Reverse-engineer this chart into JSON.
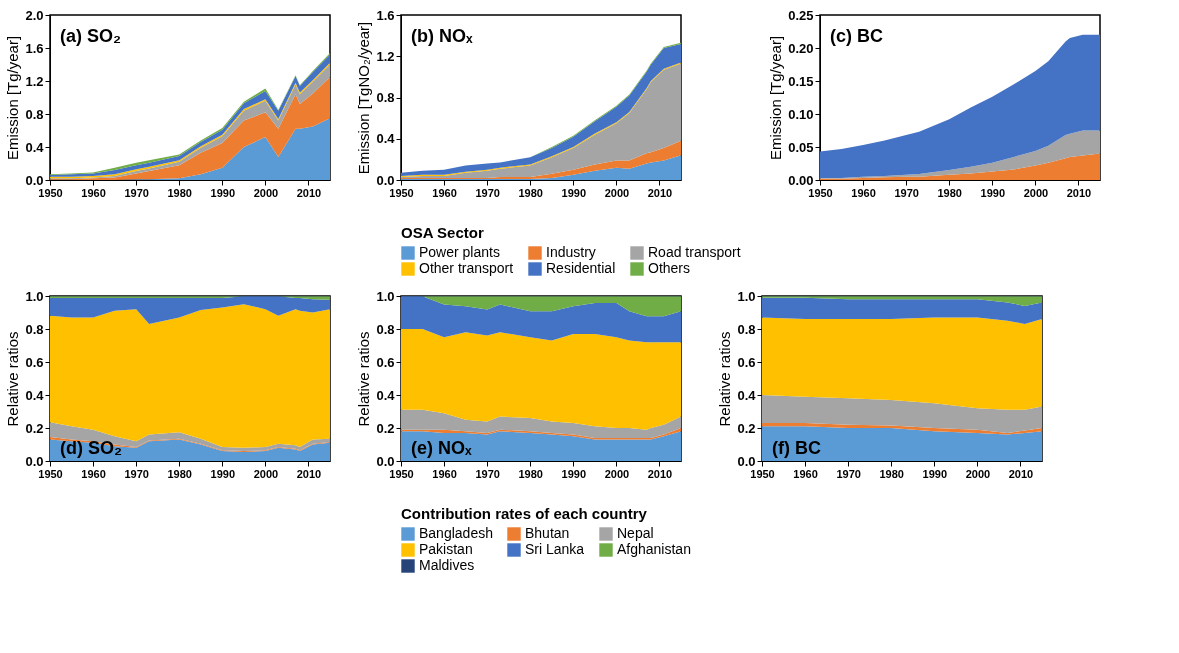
{
  "chart_data": [
    {
      "type": "area",
      "stacked": true,
      "annotations": [
        "(a) SO₂"
      ],
      "ylabel": "Emission [Tg/year]",
      "x": [
        1950,
        1955,
        1960,
        1965,
        1970,
        1973,
        1980,
        1985,
        1990,
        1995,
        2000,
        2003,
        2007,
        2008,
        2011,
        2015
      ],
      "xlim": [
        1950,
        2015
      ],
      "xticks": [
        1950,
        1960,
        1970,
        1980,
        1990,
        2000,
        2010
      ],
      "ylim": [
        0,
        2
      ],
      "yticks": [
        {
          "value": 0,
          "label": "0.0"
        },
        0.4,
        0.8,
        1.2,
        1.6,
        {
          "value": 2,
          "label": "2.0"
        }
      ],
      "grid": false,
      "series": [
        {
          "color": "#5b9bd5",
          "values": [
            0,
            0,
            0,
            0,
            0.01,
            0.01,
            0.02,
            0.07,
            0.15,
            0.4,
            0.52,
            0.28,
            0.62,
            0.62,
            0.65,
            0.75
          ]
        },
        {
          "color": "#ed7d31",
          "values": [
            0.01,
            0.01,
            0.02,
            0.03,
            0.07,
            0.1,
            0.16,
            0.26,
            0.3,
            0.32,
            0.3,
            0.34,
            0.42,
            0.3,
            0.4,
            0.5
          ]
        },
        {
          "color": "#a5a5a5",
          "values": [
            0.01,
            0.01,
            0.01,
            0.02,
            0.03,
            0.03,
            0.04,
            0.06,
            0.08,
            0.12,
            0.14,
            0.1,
            0.12,
            0.12,
            0.14,
            0.15
          ]
        },
        {
          "color": "#ffc000",
          "values": [
            0.02,
            0.02,
            0.02,
            0.02,
            0.02,
            0.02,
            0.02,
            0.02,
            0.02,
            0.02,
            0.02,
            0.02,
            0.02,
            0.02,
            0.02,
            0.02
          ]
        },
        {
          "color": "#4472c4",
          "values": [
            0.02,
            0.03,
            0.03,
            0.05,
            0.05,
            0.05,
            0.05,
            0.05,
            0.06,
            0.07,
            0.1,
            0.1,
            0.08,
            0.08,
            0.1,
            0.1
          ]
        },
        {
          "color": "#70ad47",
          "values": [
            0.01,
            0.01,
            0.01,
            0.03,
            0.03,
            0.03,
            0.02,
            0.02,
            0.02,
            0.02,
            0.03,
            0.01,
            0.01,
            0.01,
            0.01,
            0.02
          ]
        }
      ]
    },
    {
      "type": "area",
      "stacked": true,
      "annotations": [
        "(b) NOₓ"
      ],
      "ylabel": "Emission [TgNO₂/year]",
      "legend": "bottom",
      "legend_title": "OSA Sector",
      "x": [
        1950,
        1955,
        1960,
        1965,
        1970,
        1973,
        1980,
        1985,
        1990,
        1995,
        2000,
        2003,
        2007,
        2008,
        2011,
        2015
      ],
      "xlim": [
        1950,
        2015
      ],
      "xticks": [
        1950,
        1960,
        1970,
        1980,
        1990,
        2000,
        2010
      ],
      "ylim": [
        0,
        1.6
      ],
      "yticks": [
        {
          "value": 0,
          "label": "0.0"
        },
        0.4,
        0.8,
        1.2,
        1.6
      ],
      "grid": false,
      "series": [
        {
          "name": "Power plants",
          "color": "#5b9bd5",
          "values": [
            0.01,
            0.01,
            0.01,
            0.01,
            0.01,
            0.01,
            0.01,
            0.02,
            0.05,
            0.09,
            0.12,
            0.11,
            0.16,
            0.17,
            0.19,
            0.24
          ]
        },
        {
          "name": "Industry",
          "color": "#ed7d31",
          "values": [
            0.01,
            0.01,
            0.01,
            0.01,
            0.01,
            0.02,
            0.02,
            0.04,
            0.05,
            0.06,
            0.07,
            0.08,
            0.1,
            0.1,
            0.12,
            0.14
          ]
        },
        {
          "name": "Road transport",
          "color": "#a5a5a5",
          "values": [
            0.01,
            0.02,
            0.02,
            0.05,
            0.07,
            0.08,
            0.11,
            0.16,
            0.21,
            0.29,
            0.36,
            0.46,
            0.62,
            0.68,
            0.76,
            0.75
          ]
        },
        {
          "name": "Other transport",
          "color": "#ffc000",
          "values": [
            0.01,
            0.01,
            0.01,
            0.01,
            0.01,
            0.01,
            0.01,
            0.01,
            0.01,
            0.01,
            0.01,
            0.01,
            0.01,
            0.01,
            0.01,
            0.01
          ]
        },
        {
          "name": "Residential",
          "color": "#4472c4",
          "values": [
            0.03,
            0.04,
            0.05,
            0.06,
            0.06,
            0.05,
            0.07,
            0.08,
            0.1,
            0.12,
            0.15,
            0.16,
            0.16,
            0.16,
            0.2,
            0.18
          ]
        },
        {
          "name": "Others",
          "color": "#70ad47",
          "values": [
            0,
            0,
            0,
            0,
            0,
            0,
            0,
            0.01,
            0.01,
            0.01,
            0.01,
            0.01,
            0.01,
            0.01,
            0.01,
            0.01
          ]
        }
      ]
    },
    {
      "type": "area",
      "stacked": true,
      "annotations": [
        "(c) BC"
      ],
      "ylabel": "Emission [Tg/year]",
      "x": [
        1950,
        1955,
        1960,
        1965,
        1970,
        1973,
        1980,
        1985,
        1990,
        1995,
        2000,
        2003,
        2007,
        2008,
        2011,
        2015
      ],
      "xlim": [
        1950,
        2015
      ],
      "xticks": [
        1950,
        1960,
        1970,
        1980,
        1990,
        2000,
        2010
      ],
      "ylim": [
        0,
        0.25
      ],
      "yticks": [
        {
          "value": 0,
          "label": "0.00"
        },
        0.05,
        {
          "value": 0.1,
          "label": "0.10"
        },
        0.15,
        {
          "value": 0.2,
          "label": "0.20"
        },
        0.25
      ],
      "grid": false,
      "series": [
        {
          "color": "#ed7d31",
          "values": [
            0.002,
            0.002,
            0.003,
            0.004,
            0.005,
            0.005,
            0.008,
            0.01,
            0.013,
            0.016,
            0.022,
            0.026,
            0.033,
            0.035,
            0.037,
            0.04
          ]
        },
        {
          "color": "#a5a5a5",
          "values": [
            0.001,
            0.001,
            0.002,
            0.002,
            0.003,
            0.004,
            0.007,
            0.01,
            0.013,
            0.019,
            0.022,
            0.026,
            0.035,
            0.035,
            0.038,
            0.035
          ]
        },
        {
          "color": "#4472c4",
          "values": [
            0.04,
            0.044,
            0.048,
            0.054,
            0.06,
            0.064,
            0.077,
            0.09,
            0.1,
            0.11,
            0.121,
            0.128,
            0.142,
            0.145,
            0.145,
            0.145
          ]
        }
      ]
    },
    {
      "type": "area",
      "stacked": true,
      "annotations": [
        "(d) SO₂"
      ],
      "ylabel": "Relative ratios",
      "x": [
        1950,
        1955,
        1960,
        1965,
        1970,
        1973,
        1980,
        1985,
        1990,
        1995,
        2000,
        2003,
        2007,
        2008,
        2011,
        2015
      ],
      "xlim": [
        1950,
        2015
      ],
      "xticks": [
        1950,
        1960,
        1970,
        1980,
        1990,
        2000,
        2010
      ],
      "ylim": [
        0,
        1
      ],
      "yticks": [
        {
          "value": 0,
          "label": "0.0"
        },
        0.2,
        0.4,
        0.6,
        0.8,
        {
          "value": 1,
          "label": "1.0"
        }
      ],
      "grid": false,
      "series": [
        {
          "color": "#5b9bd5",
          "values": [
            0.13,
            0.12,
            0.11,
            0.09,
            0.08,
            0.12,
            0.13,
            0.1,
            0.06,
            0.055,
            0.06,
            0.08,
            0.07,
            0.06,
            0.1,
            0.11
          ]
        },
        {
          "color": "#ed7d31",
          "values": [
            0.015,
            0.01,
            0.01,
            0.01,
            0.005,
            0.005,
            0.005,
            0.005,
            0.005,
            0.005,
            0.005,
            0.005,
            0.005,
            0.005,
            0.005,
            0.005
          ]
        },
        {
          "color": "#a5a5a5",
          "values": [
            0.09,
            0.08,
            0.07,
            0.05,
            0.035,
            0.035,
            0.04,
            0.03,
            0.02,
            0.02,
            0.02,
            0.02,
            0.02,
            0.02,
            0.025,
            0.02
          ]
        },
        {
          "color": "#ffc000",
          "values": [
            0.645,
            0.66,
            0.68,
            0.76,
            0.8,
            0.67,
            0.695,
            0.78,
            0.845,
            0.87,
            0.835,
            0.775,
            0.825,
            0.825,
            0.77,
            0.785
          ]
        },
        {
          "color": "#4472c4",
          "values": [
            0.108,
            0.118,
            0.118,
            0.078,
            0.068,
            0.158,
            0.118,
            0.073,
            0.058,
            0.048,
            0.078,
            0.118,
            0.068,
            0.078,
            0.08,
            0.058
          ]
        },
        {
          "color": "#70ad47",
          "values": [
            0.01,
            0.01,
            0.01,
            0.01,
            0.01,
            0.01,
            0.01,
            0.01,
            0.01,
            0,
            0,
            0,
            0.01,
            0.01,
            0.018,
            0.02
          ]
        },
        {
          "color": "#264478",
          "values": [
            0.002,
            0.002,
            0.002,
            0.002,
            0.002,
            0.002,
            0.002,
            0.002,
            0.002,
            0.002,
            0.002,
            0.002,
            0.002,
            0.002,
            0.002,
            0.002
          ]
        }
      ]
    },
    {
      "type": "area",
      "stacked": true,
      "annotations": [
        "(e) NOₓ"
      ],
      "ylabel": "Relative ratios",
      "legend": "bottom",
      "legend_title": "Contribution rates of each country",
      "x": [
        1950,
        1955,
        1960,
        1965,
        1970,
        1973,
        1980,
        1985,
        1990,
        1995,
        2000,
        2003,
        2007,
        2008,
        2011,
        2015
      ],
      "xlim": [
        1950,
        2015
      ],
      "xticks": [
        1950,
        1960,
        1970,
        1980,
        1990,
        2000,
        2010
      ],
      "ylim": [
        0,
        1
      ],
      "yticks": [
        {
          "value": 0,
          "label": "0.0"
        },
        0.2,
        0.4,
        0.6,
        0.8,
        {
          "value": 1,
          "label": "1.0"
        }
      ],
      "grid": false,
      "series": [
        {
          "name": "Bangladesh",
          "color": "#5b9bd5",
          "values": [
            0.18,
            0.18,
            0.17,
            0.17,
            0.16,
            0.18,
            0.17,
            0.16,
            0.15,
            0.13,
            0.13,
            0.13,
            0.13,
            0.13,
            0.15,
            0.18
          ]
        },
        {
          "name": "Bhutan",
          "color": "#ed7d31",
          "values": [
            0.01,
            0.01,
            0.02,
            0.01,
            0.01,
            0.01,
            0.01,
            0.01,
            0.01,
            0.01,
            0.01,
            0.01,
            0.01,
            0.01,
            0.01,
            0.02
          ]
        },
        {
          "name": "Nepal",
          "color": "#a5a5a5",
          "values": [
            0.12,
            0.12,
            0.1,
            0.07,
            0.07,
            0.08,
            0.08,
            0.07,
            0.07,
            0.07,
            0.06,
            0.06,
            0.05,
            0.06,
            0.06,
            0.07
          ]
        },
        {
          "name": "Pakistan",
          "color": "#ffc000",
          "values": [
            0.49,
            0.49,
            0.46,
            0.53,
            0.52,
            0.51,
            0.49,
            0.49,
            0.54,
            0.56,
            0.55,
            0.53,
            0.53,
            0.52,
            0.5,
            0.45
          ]
        },
        {
          "name": "Sri Lanka",
          "color": "#4472c4",
          "values": [
            0.198,
            0.198,
            0.198,
            0.158,
            0.158,
            0.168,
            0.158,
            0.178,
            0.168,
            0.188,
            0.208,
            0.178,
            0.158,
            0.158,
            0.158,
            0.188
          ]
        },
        {
          "name": "Afghanistan",
          "color": "#70ad47",
          "values": [
            0,
            0,
            0.05,
            0.06,
            0.08,
            0.05,
            0.09,
            0.09,
            0.06,
            0.04,
            0.04,
            0.09,
            0.12,
            0.12,
            0.12,
            0.09
          ]
        },
        {
          "name": "Maldives",
          "color": "#264478",
          "values": [
            0.002,
            0.002,
            0.002,
            0.002,
            0.002,
            0.002,
            0.002,
            0.002,
            0.002,
            0.002,
            0.002,
            0.002,
            0.002,
            0.002,
            0.002,
            0.002
          ]
        }
      ]
    },
    {
      "type": "area",
      "stacked": true,
      "annotations": [
        "(f) BC"
      ],
      "ylabel": "Relative ratios",
      "x": [
        1950,
        1960,
        1970,
        1980,
        1990,
        2000,
        2007,
        2011,
        2015
      ],
      "xlim": [
        1950,
        2015
      ],
      "xticks": [
        1950,
        1960,
        1970,
        1980,
        1990,
        2000,
        2010
      ],
      "ylim": [
        0,
        1
      ],
      "yticks": [
        {
          "value": 0,
          "label": "0.0"
        },
        0.2,
        0.4,
        0.6,
        0.8,
        {
          "value": 1,
          "label": "1.0"
        }
      ],
      "grid": false,
      "series": [
        {
          "color": "#5b9bd5",
          "values": [
            0.21,
            0.21,
            0.2,
            0.2,
            0.18,
            0.17,
            0.16,
            0.17,
            0.18
          ]
        },
        {
          "color": "#ed7d31",
          "values": [
            0.02,
            0.02,
            0.02,
            0.015,
            0.02,
            0.02,
            0.01,
            0.015,
            0.02
          ]
        },
        {
          "color": "#a5a5a5",
          "values": [
            0.17,
            0.16,
            0.16,
            0.155,
            0.15,
            0.13,
            0.14,
            0.125,
            0.13
          ]
        },
        {
          "color": "#ffc000",
          "values": [
            0.47,
            0.47,
            0.48,
            0.49,
            0.52,
            0.55,
            0.54,
            0.52,
            0.53
          ]
        },
        {
          "color": "#4472c4",
          "values": [
            0.12,
            0.13,
            0.12,
            0.12,
            0.11,
            0.11,
            0.11,
            0.11,
            0.1
          ]
        },
        {
          "color": "#70ad47",
          "values": [
            0.008,
            0.008,
            0.018,
            0.018,
            0.018,
            0.018,
            0.038,
            0.058,
            0.038
          ]
        },
        {
          "color": "#264478",
          "values": [
            0.002,
            0.002,
            0.002,
            0.002,
            0.002,
            0.002,
            0.002,
            0.002,
            0.002
          ]
        }
      ]
    }
  ]
}
